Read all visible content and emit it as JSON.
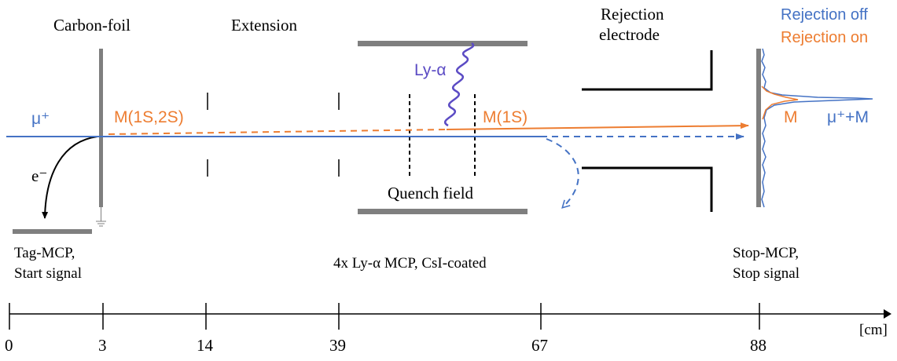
{
  "colors": {
    "blue": "#4472c4",
    "orange": "#ed7d31",
    "purple": "#5b4bc4",
    "gray": "#7f7f7f",
    "black": "#000000"
  },
  "labels": {
    "carbon_foil": "Carbon-foil",
    "extension": "Extension",
    "rejection_electrode_1": "Rejection",
    "rejection_electrode_2": "electrode",
    "legend_off": "Rejection off",
    "legend_on": "Rejection on",
    "ly_alpha": "Ly-α",
    "mu_plus": "μ⁺",
    "m_1s2s": "M(1S,2S)",
    "m_1s": "M(1S)",
    "electron": "e⁻",
    "quench_field": "Quench field",
    "peak_m": "M",
    "peak_mu_m": "μ⁺+M",
    "tag_mcp_1": "Tag-MCP,",
    "tag_mcp_2": "Start signal",
    "ly_mcp": "4x Ly-α MCP, CsI-coated",
    "stop_mcp_1": "Stop-MCP,",
    "stop_mcp_2": "Stop signal",
    "axis_unit": "[cm]"
  },
  "axis": {
    "ticks": [
      "0",
      "3",
      "14",
      "39",
      "67",
      "88"
    ]
  }
}
